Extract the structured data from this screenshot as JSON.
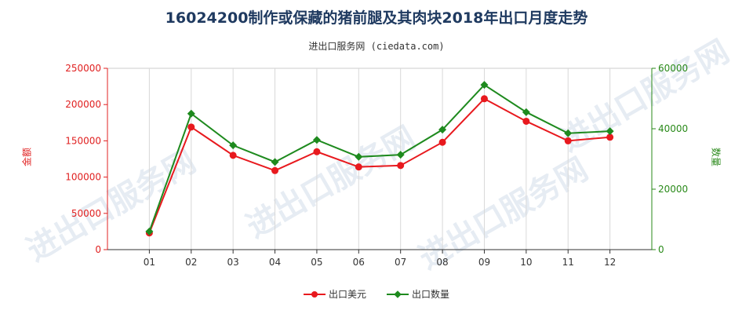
{
  "title": "16024200制作或保藏的猪前腿及其肉块2018年出口月度走势",
  "subtitle": "进出口服务网 (ciedata.com)",
  "watermark": "进出口服务网",
  "colors": {
    "series1": "#e8191e",
    "series2": "#1e8a1e",
    "axis_left": "#e02020",
    "axis_right": "#2a8a1a"
  },
  "chart_data": {
    "type": "line",
    "title": "16024200制作或保藏的猪前腿及其肉块2018年出口月度走势",
    "categories": [
      "01",
      "02",
      "03",
      "04",
      "05",
      "06",
      "07",
      "08",
      "09",
      "10",
      "11",
      "12"
    ],
    "ylabel_left": "金额",
    "ylabel_right": "数量",
    "ylim_left": [
      0,
      250000
    ],
    "ylim_right": [
      0,
      60000
    ],
    "yticks_left": [
      "0",
      "50000",
      "100000",
      "150000",
      "200000",
      "250000"
    ],
    "yticks_right": [
      "0",
      "20000",
      "40000",
      "60000"
    ],
    "series": [
      {
        "name": "出口美元",
        "axis": "left",
        "marker": "circle",
        "values": [
          23000,
          169000,
          130000,
          109000,
          135000,
          114000,
          116000,
          148000,
          208000,
          177000,
          150000,
          155000
        ]
      },
      {
        "name": "出口数量",
        "axis": "right",
        "marker": "diamond",
        "values": [
          6000,
          45000,
          34500,
          29000,
          36300,
          30700,
          31400,
          39700,
          54500,
          45500,
          38500,
          39200
        ]
      }
    ],
    "legend": "bottom-center",
    "grid": "vertical"
  }
}
